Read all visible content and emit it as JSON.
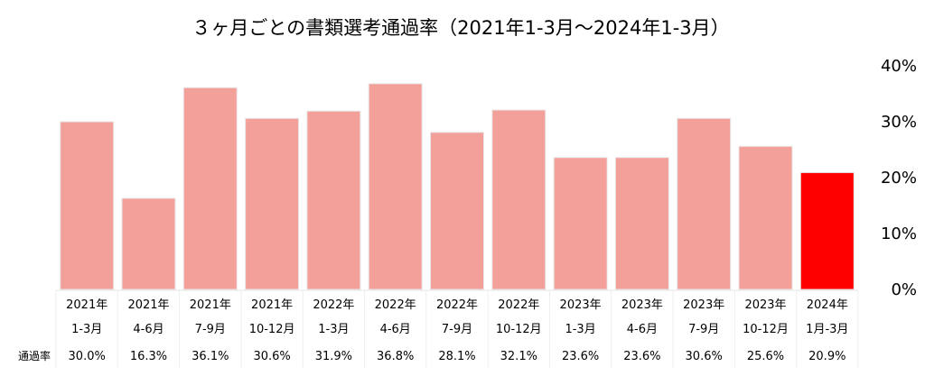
{
  "chart_data": {
    "type": "bar",
    "title": "３ヶ月ごとの書類選考通過率（2021年1-3月〜2024年1-3月）",
    "xlabel": "",
    "ylabel": "",
    "ylim": [
      0,
      40
    ],
    "yticks": [
      "0%",
      "10%",
      "20%",
      "30%",
      "40%"
    ],
    "grid": false,
    "table_row_label": "通過率",
    "categories": [
      {
        "year": "2021年",
        "period": "1-3月"
      },
      {
        "year": "2021年",
        "period": "4-6月"
      },
      {
        "year": "2021年",
        "period": "7-9月"
      },
      {
        "year": "2021年",
        "period": "10-12月"
      },
      {
        "year": "2022年",
        "period": "1-3月"
      },
      {
        "year": "2022年",
        "period": "4-6月"
      },
      {
        "year": "2022年",
        "period": "7-9月"
      },
      {
        "year": "2022年",
        "period": "10-12月"
      },
      {
        "year": "2023年",
        "period": "1-3月"
      },
      {
        "year": "2023年",
        "period": "4-6月"
      },
      {
        "year": "2023年",
        "period": "7-9月"
      },
      {
        "year": "2023年",
        "period": "10-12月"
      },
      {
        "year": "2024年",
        "period": "1月-3月"
      }
    ],
    "values": [
      30.0,
      16.3,
      36.1,
      30.6,
      31.9,
      36.8,
      28.1,
      32.1,
      23.6,
      23.6,
      30.6,
      25.6,
      20.9
    ],
    "value_labels": [
      "30.0%",
      "16.3%",
      "36.1%",
      "30.6%",
      "31.9%",
      "36.8%",
      "28.1%",
      "32.1%",
      "23.6%",
      "23.6%",
      "30.6%",
      "25.6%",
      "20.9%"
    ],
    "colors": {
      "bar": "#f4a09a",
      "bar_highlight": "#ff0000",
      "highlight_index": 12
    }
  }
}
